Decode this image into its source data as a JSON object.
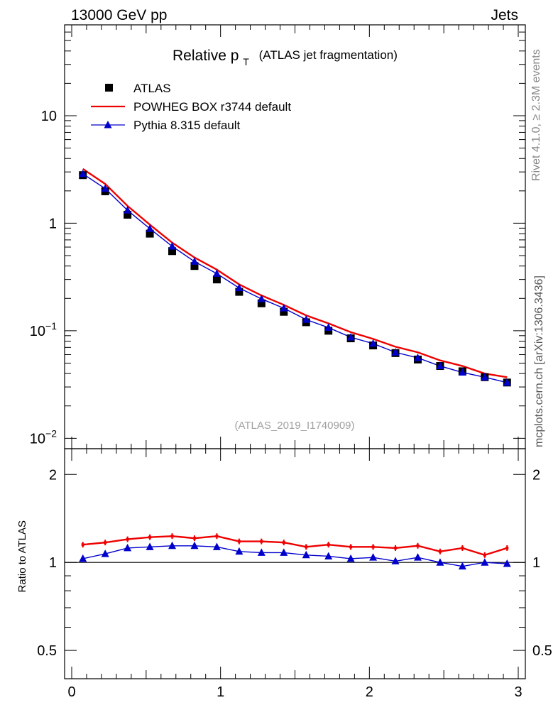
{
  "header": {
    "left": "13000 GeV pp",
    "right": "Jets"
  },
  "side_labels": {
    "rivet": "Rivet 4.1.0, ≥ 2.3M events",
    "mcplots": "mcplots.cern.ch [arXiv:1306.3436]"
  },
  "colors": {
    "atlas": "#000000",
    "powheg": "#ee0000",
    "pythia": "#0000cc",
    "ref_label": "#a0a0a0"
  },
  "chart_data": [
    {
      "type": "scatter",
      "name": "main-panel",
      "title_main": "Relative p",
      "title_sub": "T",
      "title_rest": "(ATLAS jet fragmentation)",
      "ref_label": "(ATLAS_2019_I1740909)",
      "yscale": "log",
      "xlim": [
        0,
        3
      ],
      "ylim": [
        0.008,
        70
      ],
      "yticks": [
        {
          "value": 10,
          "label": "10"
        },
        {
          "value": 1,
          "label": "1"
        },
        {
          "value": 0.1,
          "base": "10",
          "exp": "−1"
        },
        {
          "value": 0.01,
          "base": "10",
          "exp": "−2"
        }
      ],
      "x": [
        0.075,
        0.225,
        0.375,
        0.525,
        0.675,
        0.825,
        0.975,
        1.125,
        1.275,
        1.425,
        1.575,
        1.725,
        1.875,
        2.025,
        2.175,
        2.325,
        2.475,
        2.625,
        2.775,
        2.925
      ],
      "series": [
        {
          "name": "ATLAS",
          "marker": "square",
          "values": [
            2.8,
            1.98,
            1.2,
            0.8,
            0.55,
            0.4,
            0.3,
            0.23,
            0.18,
            0.15,
            0.12,
            0.1,
            0.085,
            0.073,
            0.062,
            0.054,
            0.047,
            0.042,
            0.037,
            0.033
          ]
        },
        {
          "name": "POWHEG BOX r3744 default",
          "marker": "none",
          "values": [
            3.2,
            2.32,
            1.45,
            0.97,
            0.66,
            0.48,
            0.37,
            0.27,
            0.213,
            0.174,
            0.139,
            0.117,
            0.097,
            0.084,
            0.071,
            0.063,
            0.053,
            0.047,
            0.04,
            0.037
          ]
        },
        {
          "name": "Pythia 8.315 default",
          "marker": "triangle",
          "values": [
            2.88,
            2.1,
            1.32,
            0.89,
            0.61,
            0.44,
            0.34,
            0.25,
            0.198,
            0.162,
            0.127,
            0.107,
            0.087,
            0.076,
            0.063,
            0.056,
            0.047,
            0.041,
            0.037,
            0.033
          ]
        }
      ],
      "legend": {
        "position": "top-left",
        "entries": [
          "ATLAS",
          "POWHEG BOX r3744 default",
          "Pythia 8.315 default"
        ]
      }
    },
    {
      "type": "line",
      "name": "ratio-panel",
      "ylabel": "Ratio to ATLAS",
      "yscale": "log",
      "xlim": [
        0,
        3
      ],
      "ylim": [
        0.4,
        2.45
      ],
      "xticks": [
        {
          "value": 0,
          "label": "0"
        },
        {
          "value": 1,
          "label": "1"
        },
        {
          "value": 2,
          "label": "2"
        },
        {
          "value": 3,
          "label": "3"
        }
      ],
      "yticks": [
        {
          "value": 2,
          "label": "2"
        },
        {
          "value": 1,
          "label": "1"
        },
        {
          "value": 0.5,
          "label": "0.5"
        }
      ],
      "reference_line": 1,
      "x": [
        0.075,
        0.225,
        0.375,
        0.525,
        0.675,
        0.825,
        0.975,
        1.125,
        1.275,
        1.425,
        1.575,
        1.725,
        1.875,
        2.025,
        2.175,
        2.325,
        2.475,
        2.625,
        2.775,
        2.925
      ],
      "series": [
        {
          "name": "POWHEG BOX r3744 default",
          "marker": "errorbar",
          "values": [
            1.15,
            1.17,
            1.2,
            1.22,
            1.23,
            1.21,
            1.23,
            1.18,
            1.18,
            1.17,
            1.13,
            1.15,
            1.13,
            1.13,
            1.12,
            1.14,
            1.09,
            1.12,
            1.06,
            1.12
          ]
        },
        {
          "name": "Pythia 8.315 default",
          "marker": "triangle",
          "values": [
            1.03,
            1.07,
            1.12,
            1.13,
            1.14,
            1.14,
            1.13,
            1.09,
            1.08,
            1.08,
            1.06,
            1.05,
            1.03,
            1.04,
            1.01,
            1.04,
            1.0,
            0.97,
            1.0,
            0.99
          ]
        }
      ]
    }
  ]
}
